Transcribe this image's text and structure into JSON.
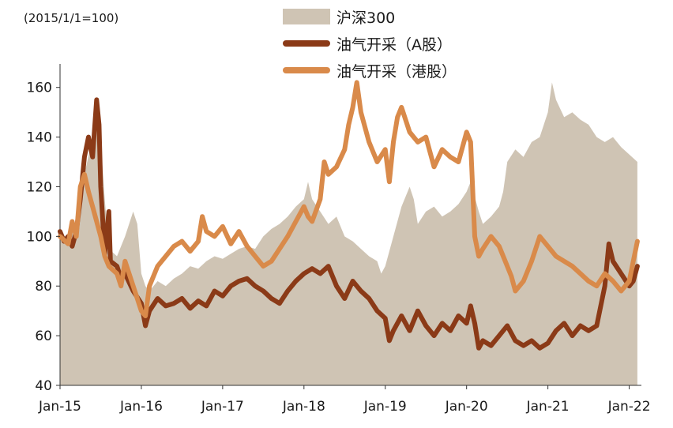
{
  "chart_data": {
    "type": "line",
    "unit_label": "(2015/1/1=100)",
    "x_ticks": [
      "Jan-15",
      "Jan-16",
      "Jan-17",
      "Jan-18",
      "Jan-19",
      "Jan-20",
      "Jan-21",
      "Jan-22"
    ],
    "ylim": [
      40,
      165
    ],
    "y_ticks": [
      40,
      60,
      80,
      100,
      120,
      140,
      160
    ],
    "x_range": [
      2015.0,
      2022.15
    ],
    "series": [
      {
        "name": "沪深300",
        "style": "area",
        "color": "#cfc4b4",
        "points": [
          [
            2015.0,
            100
          ],
          [
            2015.1,
            98
          ],
          [
            2015.2,
            105
          ],
          [
            2015.3,
            125
          ],
          [
            2015.4,
            140
          ],
          [
            2015.45,
            150
          ],
          [
            2015.5,
            138
          ],
          [
            2015.55,
            115
          ],
          [
            2015.6,
            95
          ],
          [
            2015.7,
            92
          ],
          [
            2015.8,
            100
          ],
          [
            2015.9,
            110
          ],
          [
            2015.95,
            105
          ],
          [
            2016.0,
            85
          ],
          [
            2016.05,
            80
          ],
          [
            2016.1,
            78
          ],
          [
            2016.2,
            82
          ],
          [
            2016.3,
            80
          ],
          [
            2016.4,
            83
          ],
          [
            2016.5,
            85
          ],
          [
            2016.6,
            88
          ],
          [
            2016.7,
            87
          ],
          [
            2016.8,
            90
          ],
          [
            2016.9,
            92
          ],
          [
            2017.0,
            91
          ],
          [
            2017.1,
            93
          ],
          [
            2017.2,
            95
          ],
          [
            2017.3,
            96
          ],
          [
            2017.4,
            95
          ],
          [
            2017.5,
            100
          ],
          [
            2017.6,
            103
          ],
          [
            2017.7,
            105
          ],
          [
            2017.8,
            108
          ],
          [
            2017.9,
            112
          ],
          [
            2018.0,
            115
          ],
          [
            2018.05,
            122
          ],
          [
            2018.1,
            115
          ],
          [
            2018.2,
            110
          ],
          [
            2018.3,
            105
          ],
          [
            2018.4,
            108
          ],
          [
            2018.5,
            100
          ],
          [
            2018.6,
            98
          ],
          [
            2018.7,
            95
          ],
          [
            2018.8,
            92
          ],
          [
            2018.9,
            90
          ],
          [
            2018.95,
            85
          ],
          [
            2019.0,
            88
          ],
          [
            2019.1,
            100
          ],
          [
            2019.2,
            112
          ],
          [
            2019.3,
            120
          ],
          [
            2019.35,
            115
          ],
          [
            2019.4,
            105
          ],
          [
            2019.5,
            110
          ],
          [
            2019.6,
            112
          ],
          [
            2019.7,
            108
          ],
          [
            2019.8,
            110
          ],
          [
            2019.9,
            113
          ],
          [
            2020.0,
            118
          ],
          [
            2020.05,
            122
          ],
          [
            2020.15,
            110
          ],
          [
            2020.2,
            105
          ],
          [
            2020.3,
            108
          ],
          [
            2020.4,
            112
          ],
          [
            2020.45,
            118
          ],
          [
            2020.5,
            130
          ],
          [
            2020.6,
            135
          ],
          [
            2020.7,
            132
          ],
          [
            2020.8,
            138
          ],
          [
            2020.9,
            140
          ],
          [
            2021.0,
            150
          ],
          [
            2021.05,
            162
          ],
          [
            2021.1,
            155
          ],
          [
            2021.2,
            148
          ],
          [
            2021.3,
            150
          ],
          [
            2021.4,
            147
          ],
          [
            2021.5,
            145
          ],
          [
            2021.6,
            140
          ],
          [
            2021.7,
            138
          ],
          [
            2021.8,
            140
          ],
          [
            2021.9,
            136
          ],
          [
            2022.0,
            133
          ],
          [
            2022.1,
            130
          ]
        ]
      },
      {
        "name": "油气开采（A股）",
        "style": "line",
        "color": "#8b3a17",
        "points": [
          [
            2015.0,
            102
          ],
          [
            2015.05,
            98
          ],
          [
            2015.1,
            100
          ],
          [
            2015.15,
            96
          ],
          [
            2015.2,
            102
          ],
          [
            2015.25,
            115
          ],
          [
            2015.3,
            132
          ],
          [
            2015.35,
            140
          ],
          [
            2015.4,
            132
          ],
          [
            2015.45,
            155
          ],
          [
            2015.48,
            145
          ],
          [
            2015.5,
            120
          ],
          [
            2015.55,
            93
          ],
          [
            2015.6,
            110
          ],
          [
            2015.62,
            90
          ],
          [
            2015.7,
            88
          ],
          [
            2015.75,
            83
          ],
          [
            2015.8,
            85
          ],
          [
            2015.9,
            78
          ],
          [
            2016.0,
            73
          ],
          [
            2016.05,
            64
          ],
          [
            2016.1,
            70
          ],
          [
            2016.2,
            75
          ],
          [
            2016.3,
            72
          ],
          [
            2016.4,
            73
          ],
          [
            2016.5,
            75
          ],
          [
            2016.6,
            71
          ],
          [
            2016.7,
            74
          ],
          [
            2016.8,
            72
          ],
          [
            2016.9,
            78
          ],
          [
            2017.0,
            76
          ],
          [
            2017.1,
            80
          ],
          [
            2017.2,
            82
          ],
          [
            2017.3,
            83
          ],
          [
            2017.4,
            80
          ],
          [
            2017.5,
            78
          ],
          [
            2017.6,
            75
          ],
          [
            2017.7,
            73
          ],
          [
            2017.8,
            78
          ],
          [
            2017.9,
            82
          ],
          [
            2018.0,
            85
          ],
          [
            2018.1,
            87
          ],
          [
            2018.2,
            85
          ],
          [
            2018.3,
            88
          ],
          [
            2018.4,
            80
          ],
          [
            2018.5,
            75
          ],
          [
            2018.6,
            82
          ],
          [
            2018.7,
            78
          ],
          [
            2018.8,
            75
          ],
          [
            2018.9,
            70
          ],
          [
            2019.0,
            67
          ],
          [
            2019.05,
            58
          ],
          [
            2019.1,
            62
          ],
          [
            2019.2,
            68
          ],
          [
            2019.3,
            62
          ],
          [
            2019.4,
            70
          ],
          [
            2019.5,
            64
          ],
          [
            2019.6,
            60
          ],
          [
            2019.7,
            65
          ],
          [
            2019.8,
            62
          ],
          [
            2019.9,
            68
          ],
          [
            2020.0,
            65
          ],
          [
            2020.05,
            72
          ],
          [
            2020.1,
            65
          ],
          [
            2020.15,
            55
          ],
          [
            2020.2,
            58
          ],
          [
            2020.3,
            56
          ],
          [
            2020.4,
            60
          ],
          [
            2020.5,
            64
          ],
          [
            2020.6,
            58
          ],
          [
            2020.7,
            56
          ],
          [
            2020.8,
            58
          ],
          [
            2020.9,
            55
          ],
          [
            2021.0,
            57
          ],
          [
            2021.1,
            62
          ],
          [
            2021.2,
            65
          ],
          [
            2021.3,
            60
          ],
          [
            2021.4,
            64
          ],
          [
            2021.5,
            62
          ],
          [
            2021.6,
            64
          ],
          [
            2021.7,
            80
          ],
          [
            2021.75,
            97
          ],
          [
            2021.8,
            90
          ],
          [
            2021.9,
            85
          ],
          [
            2022.0,
            80
          ],
          [
            2022.05,
            82
          ],
          [
            2022.1,
            88
          ]
        ]
      },
      {
        "name": "油气开采（港股）",
        "style": "line",
        "color": "#d98a4a",
        "points": [
          [
            2015.0,
            100
          ],
          [
            2015.1,
            97
          ],
          [
            2015.15,
            106
          ],
          [
            2015.2,
            100
          ],
          [
            2015.25,
            120
          ],
          [
            2015.3,
            125
          ],
          [
            2015.35,
            118
          ],
          [
            2015.4,
            112
          ],
          [
            2015.5,
            100
          ],
          [
            2015.55,
            92
          ],
          [
            2015.6,
            88
          ],
          [
            2015.7,
            85
          ],
          [
            2015.75,
            80
          ],
          [
            2015.8,
            90
          ],
          [
            2015.9,
            80
          ],
          [
            2016.0,
            70
          ],
          [
            2016.05,
            68
          ],
          [
            2016.1,
            80
          ],
          [
            2016.2,
            88
          ],
          [
            2016.3,
            92
          ],
          [
            2016.4,
            96
          ],
          [
            2016.5,
            98
          ],
          [
            2016.6,
            94
          ],
          [
            2016.7,
            98
          ],
          [
            2016.75,
            108
          ],
          [
            2016.8,
            102
          ],
          [
            2016.9,
            100
          ],
          [
            2017.0,
            104
          ],
          [
            2017.1,
            97
          ],
          [
            2017.2,
            102
          ],
          [
            2017.3,
            96
          ],
          [
            2017.4,
            92
          ],
          [
            2017.5,
            88
          ],
          [
            2017.6,
            90
          ],
          [
            2017.7,
            95
          ],
          [
            2017.8,
            100
          ],
          [
            2017.9,
            106
          ],
          [
            2018.0,
            112
          ],
          [
            2018.05,
            108
          ],
          [
            2018.1,
            106
          ],
          [
            2018.2,
            115
          ],
          [
            2018.25,
            130
          ],
          [
            2018.3,
            125
          ],
          [
            2018.4,
            128
          ],
          [
            2018.5,
            135
          ],
          [
            2018.55,
            145
          ],
          [
            2018.6,
            152
          ],
          [
            2018.65,
            162
          ],
          [
            2018.7,
            150
          ],
          [
            2018.8,
            138
          ],
          [
            2018.9,
            130
          ],
          [
            2019.0,
            135
          ],
          [
            2019.05,
            122
          ],
          [
            2019.1,
            138
          ],
          [
            2019.15,
            148
          ],
          [
            2019.2,
            152
          ],
          [
            2019.3,
            142
          ],
          [
            2019.4,
            138
          ],
          [
            2019.5,
            140
          ],
          [
            2019.6,
            128
          ],
          [
            2019.7,
            135
          ],
          [
            2019.8,
            132
          ],
          [
            2019.9,
            130
          ],
          [
            2020.0,
            142
          ],
          [
            2020.05,
            138
          ],
          [
            2020.1,
            100
          ],
          [
            2020.15,
            92
          ],
          [
            2020.2,
            95
          ],
          [
            2020.3,
            100
          ],
          [
            2020.4,
            96
          ],
          [
            2020.5,
            88
          ],
          [
            2020.55,
            84
          ],
          [
            2020.6,
            78
          ],
          [
            2020.7,
            82
          ],
          [
            2020.8,
            90
          ],
          [
            2020.9,
            100
          ],
          [
            2021.0,
            96
          ],
          [
            2021.1,
            92
          ],
          [
            2021.2,
            90
          ],
          [
            2021.3,
            88
          ],
          [
            2021.4,
            85
          ],
          [
            2021.5,
            82
          ],
          [
            2021.6,
            80
          ],
          [
            2021.7,
            85
          ],
          [
            2021.8,
            82
          ],
          [
            2021.9,
            78
          ],
          [
            2022.0,
            82
          ],
          [
            2022.05,
            90
          ],
          [
            2022.1,
            98
          ]
        ]
      }
    ]
  }
}
